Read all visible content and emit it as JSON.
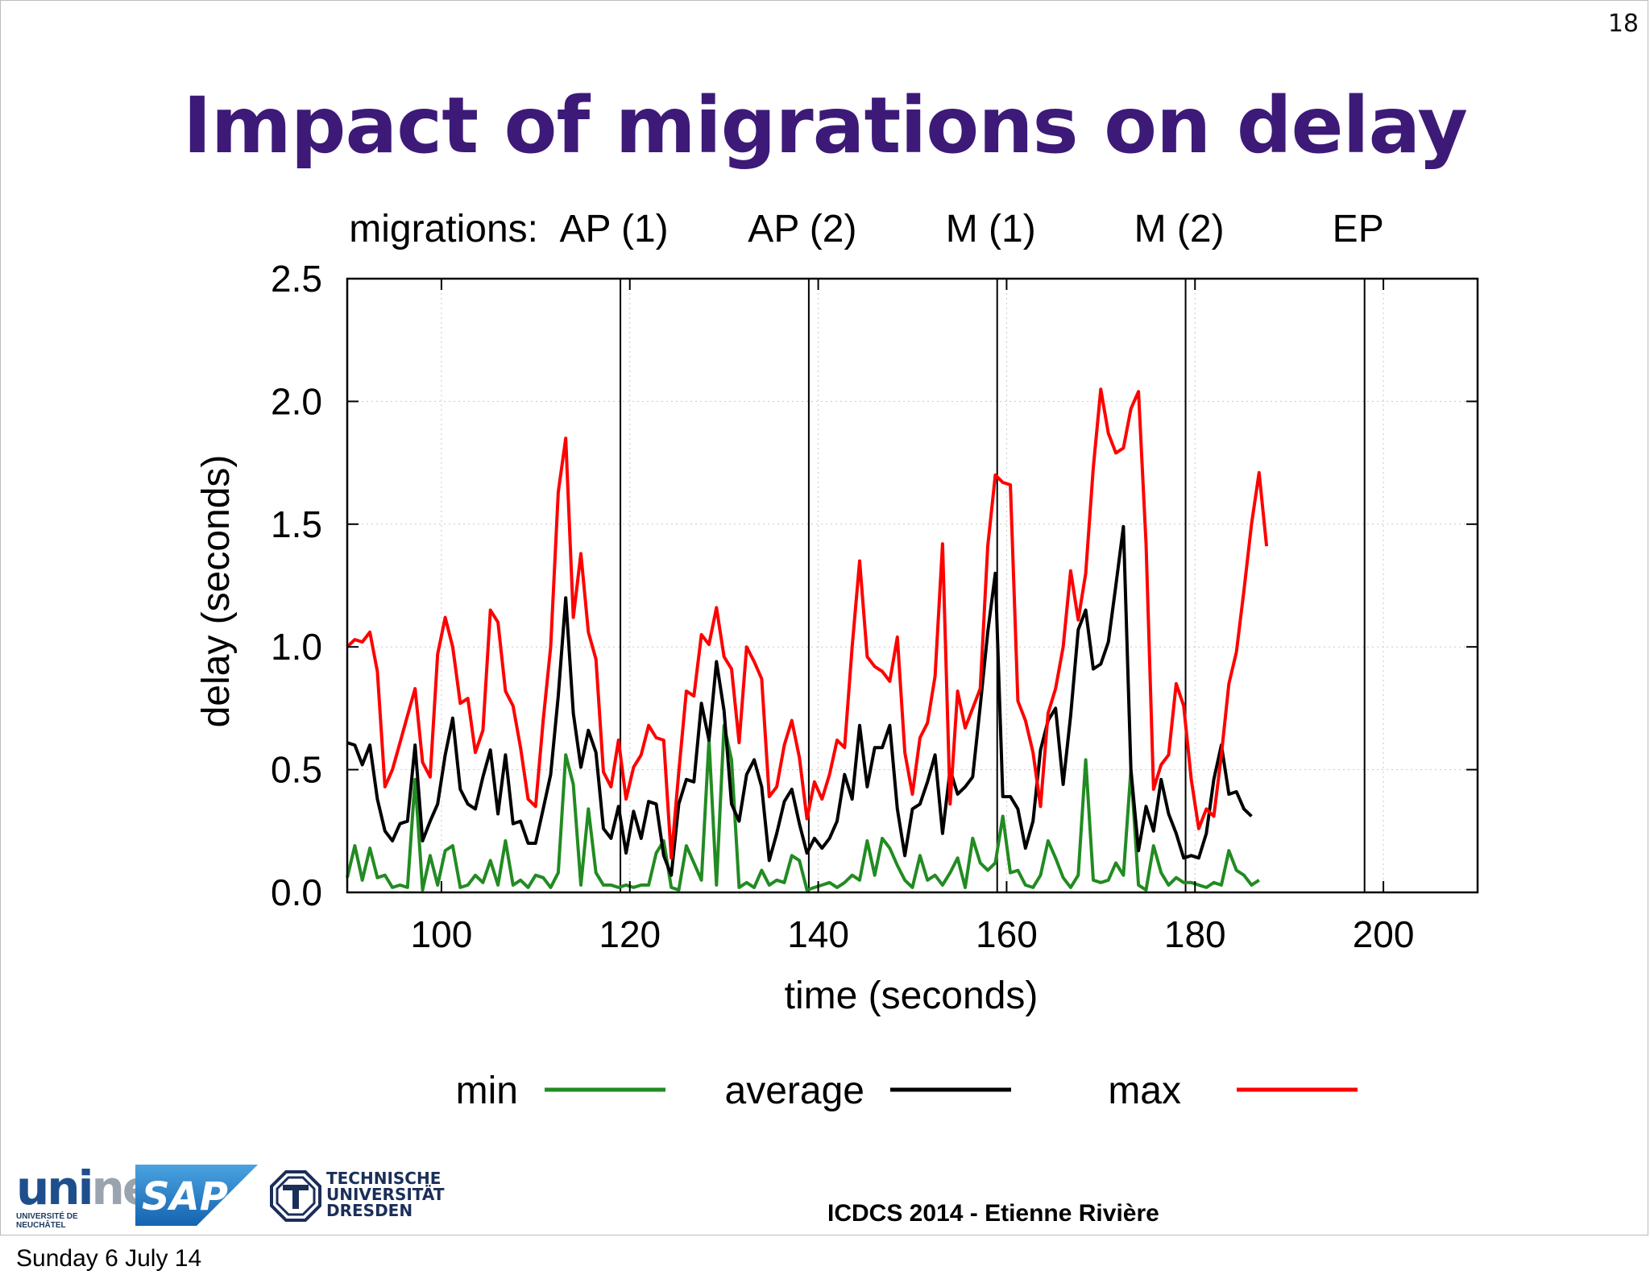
{
  "slide": {
    "number": "18",
    "title": "Impact of migrations on delay",
    "footer_credit": "ICDCS 2014 - Etienne Rivière",
    "footer_date": "Sunday 6 July 14"
  },
  "logos": {
    "unine_word_dark": "uni",
    "unine_word_light": "ne",
    "unine_sub_1": "UNIVERSITÉ DE",
    "unine_sub_2": "NEUCHÂTEL",
    "sap": "SAP",
    "tud_line_1": "TECHNISCHE",
    "tud_line_2": "UNIVERSITÄT",
    "tud_line_3": "DRESDEN"
  },
  "chart_data": {
    "type": "line",
    "title": "",
    "xlabel": "time (seconds)",
    "ylabel": "delay (seconds)",
    "xlim": [
      90,
      210
    ],
    "ylim": [
      0,
      2.5
    ],
    "x_ticks": [
      100,
      120,
      140,
      160,
      180,
      200
    ],
    "y_ticks": [
      "0.0",
      "0.5",
      "1.0",
      "1.5",
      "2.0",
      "2.5"
    ],
    "grid": true,
    "legend": "bottom",
    "migrations_label": "migrations:",
    "migrations": [
      {
        "label": "AP (1)",
        "x": 119
      },
      {
        "label": "AP (2)",
        "x": 139
      },
      {
        "label": "M (1)",
        "x": 159
      },
      {
        "label": "M (2)",
        "x": 179
      },
      {
        "label": "EP",
        "x": 198
      }
    ],
    "x_start": 90,
    "x_step": 0.8,
    "series": [
      {
        "name": "min",
        "color": "#228b22",
        "values": [
          0.06,
          0.19,
          0.05,
          0.18,
          0.06,
          0.07,
          0.02,
          0.03,
          0.02,
          0.46,
          0.01,
          0.15,
          0.03,
          0.17,
          0.19,
          0.02,
          0.03,
          0.07,
          0.04,
          0.13,
          0.03,
          0.21,
          0.03,
          0.05,
          0.02,
          0.07,
          0.06,
          0.02,
          0.08,
          0.56,
          0.44,
          0.03,
          0.34,
          0.08,
          0.03,
          0.03,
          0.02,
          0.03,
          0.02,
          0.03,
          0.03,
          0.16,
          0.21,
          0.02,
          0.01,
          0.19,
          0.12,
          0.05,
          0.62,
          0.03,
          0.68,
          0.54,
          0.02,
          0.04,
          0.02,
          0.09,
          0.03,
          0.05,
          0.04,
          0.15,
          0.13,
          0.01,
          0.02,
          0.03,
          0.04,
          0.02,
          0.04,
          0.07,
          0.05,
          0.21,
          0.07,
          0.22,
          0.18,
          0.11,
          0.05,
          0.02,
          0.15,
          0.05,
          0.07,
          0.03,
          0.08,
          0.14,
          0.02,
          0.22,
          0.12,
          0.09,
          0.12,
          0.31,
          0.08,
          0.09,
          0.03,
          0.02,
          0.07,
          0.21,
          0.14,
          0.06,
          0.02,
          0.07,
          0.54,
          0.05,
          0.04,
          0.05,
          0.12,
          0.07,
          0.5,
          0.03,
          0.01,
          0.19,
          0.08,
          0.03,
          0.06,
          0.04,
          0.04,
          0.03,
          0.02,
          0.04,
          0.03,
          0.17,
          0.09,
          0.07,
          0.03,
          0.05
        ]
      },
      {
        "name": "average",
        "color": "#000000",
        "values": [
          0.61,
          0.6,
          0.52,
          0.6,
          0.38,
          0.25,
          0.21,
          0.28,
          0.29,
          0.6,
          0.21,
          0.29,
          0.36,
          0.56,
          0.71,
          0.42,
          0.36,
          0.34,
          0.47,
          0.58,
          0.32,
          0.56,
          0.28,
          0.29,
          0.2,
          0.2,
          0.34,
          0.48,
          0.8,
          1.2,
          0.73,
          0.51,
          0.66,
          0.57,
          0.26,
          0.22,
          0.35,
          0.16,
          0.33,
          0.22,
          0.37,
          0.36,
          0.15,
          0.07,
          0.36,
          0.46,
          0.45,
          0.77,
          0.62,
          0.94,
          0.74,
          0.36,
          0.29,
          0.48,
          0.54,
          0.43,
          0.13,
          0.24,
          0.37,
          0.42,
          0.28,
          0.16,
          0.22,
          0.18,
          0.22,
          0.29,
          0.48,
          0.38,
          0.68,
          0.43,
          0.59,
          0.59,
          0.68,
          0.34,
          0.15,
          0.34,
          0.36,
          0.45,
          0.56,
          0.24,
          0.5,
          0.4,
          0.43,
          0.47,
          0.76,
          1.06,
          1.3,
          0.39,
          0.39,
          0.34,
          0.18,
          0.29,
          0.58,
          0.7,
          0.75,
          0.44,
          0.72,
          1.07,
          1.15,
          0.91,
          0.93,
          1.02,
          1.25,
          1.49,
          0.5,
          0.17,
          0.35,
          0.25,
          0.46,
          0.32,
          0.24,
          0.14,
          0.15,
          0.14,
          0.24,
          0.46,
          0.6,
          0.4,
          0.41,
          0.34,
          0.31
        ]
      },
      {
        "name": "max",
        "color": "#ff0000",
        "values": [
          1.0,
          1.03,
          1.02,
          1.06,
          0.9,
          0.43,
          0.5,
          0.61,
          0.72,
          0.83,
          0.53,
          0.47,
          0.97,
          1.12,
          1.0,
          0.77,
          0.79,
          0.57,
          0.66,
          1.15,
          1.1,
          0.82,
          0.76,
          0.59,
          0.38,
          0.35,
          0.7,
          1.0,
          1.63,
          1.85,
          1.12,
          1.38,
          1.06,
          0.95,
          0.49,
          0.43,
          0.62,
          0.38,
          0.51,
          0.56,
          0.68,
          0.63,
          0.62,
          0.14,
          0.49,
          0.82,
          0.8,
          1.05,
          1.01,
          1.16,
          0.96,
          0.91,
          0.61,
          1.0,
          0.94,
          0.87,
          0.39,
          0.43,
          0.6,
          0.7,
          0.55,
          0.3,
          0.45,
          0.38,
          0.48,
          0.62,
          0.59,
          1.0,
          1.35,
          0.96,
          0.92,
          0.9,
          0.86,
          1.04,
          0.57,
          0.4,
          0.63,
          0.69,
          0.88,
          1.42,
          0.36,
          0.82,
          0.67,
          0.75,
          0.83,
          1.41,
          1.7,
          1.67,
          1.66,
          0.78,
          0.7,
          0.57,
          0.35,
          0.73,
          0.83,
          1.0,
          1.31,
          1.11,
          1.3,
          1.73,
          2.05,
          1.87,
          1.79,
          1.81,
          1.97,
          2.04,
          1.42,
          0.42,
          0.52,
          0.56,
          0.85,
          0.76,
          0.46,
          0.26,
          0.34,
          0.31,
          0.56,
          0.85,
          0.98,
          1.23,
          1.5,
          1.71,
          1.41
        ]
      }
    ]
  }
}
